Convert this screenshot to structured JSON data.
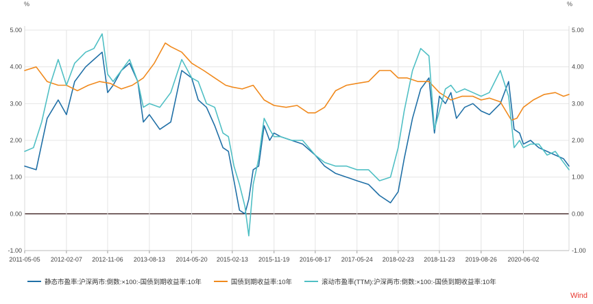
{
  "chart_data": {
    "type": "line",
    "left_unit": "%",
    "right_unit": "%",
    "ylim": [
      -1.0,
      5.0
    ],
    "y_ticks": [
      "5.00",
      "4.00",
      "3.00",
      "2.00",
      "1.00",
      "0.00",
      "-1.00"
    ],
    "y_tick_values": [
      5,
      4,
      3,
      2,
      1,
      0,
      -1
    ],
    "x_tick_labels": [
      "2011-05-05",
      "2012-02-07",
      "2012-11-06",
      "2013-08-13",
      "2014-05-20",
      "2015-02-13",
      "2015-11-19",
      "2016-08-17",
      "2017-05-24",
      "2018-02-23",
      "2018-11-23",
      "2019-08-26",
      "2020-06-02"
    ],
    "x_tick_years": [
      2011.34,
      2012.1,
      2012.85,
      2013.61,
      2014.38,
      2015.12,
      2015.88,
      2016.63,
      2017.39,
      2018.14,
      2018.89,
      2019.65,
      2020.42
    ],
    "x_range": [
      2011.34,
      2021.25
    ],
    "zero_line": 0,
    "series": [
      {
        "name": "静态市盈率:沪深两市:倒数:×100:-国债到期收益率:10年",
        "color": "#1f6fa6",
        "x": [
          2011.34,
          2011.55,
          2011.75,
          2011.95,
          2012.1,
          2012.25,
          2012.45,
          2012.6,
          2012.75,
          2012.85,
          2012.95,
          2013.1,
          2013.25,
          2013.4,
          2013.5,
          2013.61,
          2013.8,
          2014.0,
          2014.2,
          2014.38,
          2014.5,
          2014.65,
          2014.8,
          2014.95,
          2015.05,
          2015.15,
          2015.25,
          2015.35,
          2015.42,
          2015.5,
          2015.6,
          2015.7,
          2015.8,
          2015.88,
          2016.0,
          2016.2,
          2016.4,
          2016.63,
          2016.8,
          2017.0,
          2017.2,
          2017.39,
          2017.6,
          2017.8,
          2018.0,
          2018.14,
          2018.25,
          2018.4,
          2018.55,
          2018.7,
          2018.8,
          2018.89,
          2019.0,
          2019.1,
          2019.2,
          2019.35,
          2019.5,
          2019.65,
          2019.8,
          2020.0,
          2020.15,
          2020.25,
          2020.35,
          2020.42,
          2020.55,
          2020.7,
          2020.85,
          2021.0,
          2021.15,
          2021.25
        ],
        "values": [
          1.3,
          1.2,
          2.6,
          3.1,
          2.7,
          3.6,
          4.0,
          4.2,
          4.4,
          3.3,
          3.5,
          3.9,
          4.1,
          3.6,
          2.5,
          2.7,
          2.3,
          2.5,
          3.9,
          3.7,
          3.1,
          2.9,
          2.4,
          1.8,
          1.7,
          0.9,
          0.1,
          0.0,
          0.4,
          1.2,
          1.3,
          2.4,
          2.0,
          2.2,
          2.1,
          2.0,
          1.9,
          1.6,
          1.3,
          1.1,
          1.0,
          0.9,
          0.8,
          0.5,
          0.3,
          0.6,
          1.5,
          2.6,
          3.4,
          3.7,
          2.2,
          3.2,
          3.0,
          3.3,
          2.6,
          2.9,
          3.0,
          2.8,
          2.7,
          3.0,
          3.6,
          2.3,
          2.2,
          1.9,
          2.0,
          1.8,
          1.7,
          1.6,
          1.5,
          1.3
        ]
      },
      {
        "name": "国债到期收益率:10年",
        "color": "#f0891c",
        "x": [
          2011.34,
          2011.55,
          2011.75,
          2011.95,
          2012.1,
          2012.3,
          2012.5,
          2012.7,
          2012.9,
          2013.1,
          2013.3,
          2013.5,
          2013.7,
          2013.9,
          2014.0,
          2014.2,
          2014.38,
          2014.6,
          2014.8,
          2015.0,
          2015.12,
          2015.3,
          2015.5,
          2015.7,
          2015.88,
          2016.1,
          2016.3,
          2016.5,
          2016.63,
          2016.8,
          2017.0,
          2017.2,
          2017.39,
          2017.6,
          2017.8,
          2018.0,
          2018.14,
          2018.3,
          2018.5,
          2018.7,
          2018.89,
          2019.1,
          2019.3,
          2019.5,
          2019.65,
          2019.8,
          2020.0,
          2020.2,
          2020.3,
          2020.42,
          2020.6,
          2020.8,
          2021.0,
          2021.15,
          2021.25
        ],
        "values": [
          3.9,
          4.0,
          3.6,
          3.5,
          3.5,
          3.35,
          3.5,
          3.6,
          3.55,
          3.4,
          3.5,
          3.7,
          4.1,
          4.65,
          4.55,
          4.4,
          4.1,
          3.9,
          3.7,
          3.5,
          3.45,
          3.4,
          3.5,
          3.1,
          2.95,
          2.9,
          2.95,
          2.75,
          2.75,
          2.9,
          3.35,
          3.5,
          3.55,
          3.6,
          3.9,
          3.9,
          3.7,
          3.7,
          3.6,
          3.6,
          3.3,
          3.1,
          3.2,
          3.2,
          3.1,
          3.15,
          3.05,
          2.55,
          2.6,
          2.9,
          3.1,
          3.25,
          3.3,
          3.2,
          3.25
        ]
      },
      {
        "name": "滚动市盈率(TTM):沪深两市:倒数:×100:-国债到期收益率:10年",
        "color": "#4fbfc4",
        "x": [
          2011.34,
          2011.5,
          2011.65,
          2011.8,
          2011.95,
          2012.1,
          2012.25,
          2012.45,
          2012.6,
          2012.75,
          2012.85,
          2012.95,
          2013.1,
          2013.25,
          2013.4,
          2013.5,
          2013.61,
          2013.8,
          2014.0,
          2014.2,
          2014.38,
          2014.5,
          2014.65,
          2014.8,
          2014.95,
          2015.05,
          2015.15,
          2015.25,
          2015.35,
          2015.42,
          2015.5,
          2015.6,
          2015.7,
          2015.8,
          2015.88,
          2016.0,
          2016.2,
          2016.4,
          2016.63,
          2016.8,
          2017.0,
          2017.2,
          2017.39,
          2017.6,
          2017.8,
          2018.0,
          2018.14,
          2018.25,
          2018.4,
          2018.55,
          2018.7,
          2018.8,
          2018.89,
          2019.0,
          2019.1,
          2019.2,
          2019.35,
          2019.5,
          2019.65,
          2019.8,
          2020.0,
          2020.15,
          2020.25,
          2020.35,
          2020.42,
          2020.55,
          2020.7,
          2020.85,
          2021.0,
          2021.15,
          2021.25
        ],
        "values": [
          1.7,
          1.8,
          2.5,
          3.5,
          4.2,
          3.5,
          4.1,
          4.4,
          4.5,
          4.9,
          3.8,
          3.6,
          3.9,
          4.2,
          3.6,
          2.9,
          3.0,
          2.9,
          3.3,
          4.2,
          3.7,
          3.6,
          3.0,
          2.9,
          2.2,
          2.1,
          1.3,
          0.8,
          0.2,
          -0.6,
          0.8,
          1.5,
          2.6,
          2.3,
          2.1,
          2.1,
          2.0,
          2.0,
          1.6,
          1.4,
          1.3,
          1.3,
          1.2,
          1.2,
          0.9,
          1.0,
          1.8,
          2.8,
          3.9,
          4.5,
          4.3,
          2.3,
          2.8,
          3.4,
          3.5,
          3.3,
          3.4,
          3.3,
          3.2,
          3.3,
          3.9,
          3.2,
          1.8,
          2.0,
          1.8,
          1.9,
          1.9,
          1.6,
          1.7,
          1.4,
          1.2
        ]
      }
    ]
  },
  "brand": {
    "label": "Wind",
    "color": "#e8382f"
  }
}
